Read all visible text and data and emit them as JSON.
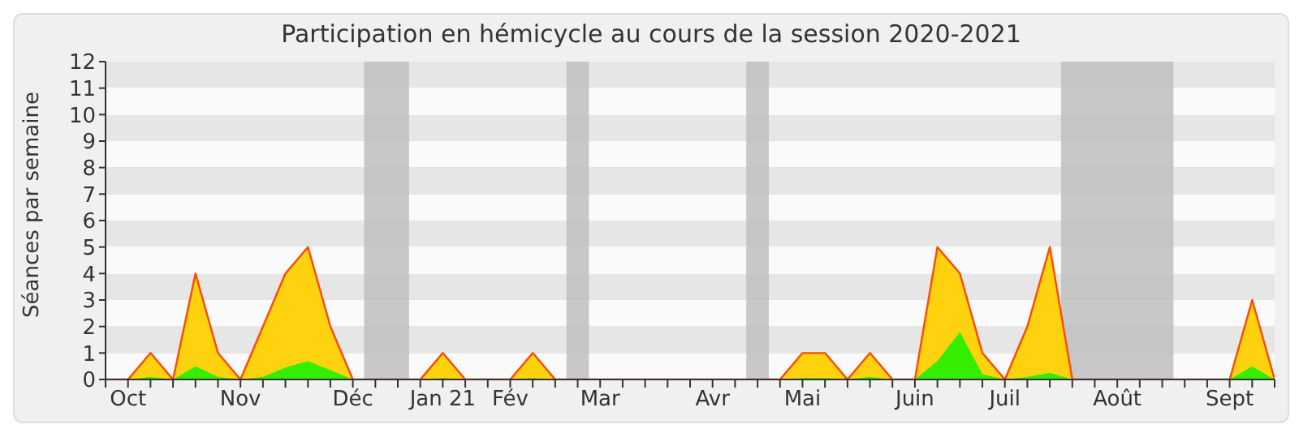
{
  "chart_data": {
    "type": "area",
    "title": "Participation en hémicycle au cours de la session 2020-2021",
    "ylabel": "Séances par semaine",
    "x": [
      "2020-09-28",
      "2020-10-05",
      "2020-10-12",
      "2020-10-19",
      "2020-10-26",
      "2020-11-02",
      "2020-11-09",
      "2020-11-16",
      "2020-11-23",
      "2020-11-30",
      "2020-12-07",
      "2020-12-14",
      "2020-12-21",
      "2020-12-28",
      "2021-01-04",
      "2021-01-11",
      "2021-01-18",
      "2021-01-25",
      "2021-02-01",
      "2021-02-08",
      "2021-02-15",
      "2021-02-22",
      "2021-03-01",
      "2021-03-08",
      "2021-03-15",
      "2021-03-22",
      "2021-03-29",
      "2021-04-05",
      "2021-04-12",
      "2021-04-19",
      "2021-04-26",
      "2021-05-03",
      "2021-05-10",
      "2021-05-17",
      "2021-05-24",
      "2021-05-31",
      "2021-06-07",
      "2021-06-14",
      "2021-06-21",
      "2021-06-28",
      "2021-07-05",
      "2021-07-12",
      "2021-07-19",
      "2021-07-26",
      "2021-08-02",
      "2021-08-09",
      "2021-08-16",
      "2021-08-23",
      "2021-08-30",
      "2021-09-06",
      "2021-09-13",
      "2021-09-20",
      "2021-09-27"
    ],
    "series": [
      {
        "color": "#ffd20f",
        "values": [
          0,
          0,
          1,
          0,
          4,
          1,
          0,
          2,
          4,
          5,
          2,
          0,
          0,
          0,
          0,
          1,
          0,
          0,
          0,
          1,
          0,
          0,
          0,
          0,
          0,
          0,
          0,
          0,
          0,
          0,
          0,
          1,
          1,
          0,
          1,
          0,
          0,
          5,
          4,
          1,
          0,
          2,
          5,
          0,
          0,
          0,
          0,
          0,
          0,
          0,
          0,
          3,
          0
        ]
      },
      {
        "color": "#33ee00",
        "values": [
          0,
          0,
          0.1,
          0,
          0.5,
          0.1,
          0,
          0.1,
          0.45,
          0.7,
          0.35,
          0,
          0,
          0,
          0,
          0.05,
          0,
          0,
          0,
          0.05,
          0,
          0,
          0,
          0,
          0,
          0,
          0,
          0,
          0,
          0,
          0,
          0.05,
          0.05,
          0,
          0.1,
          0,
          0,
          0.7,
          1.8,
          0.2,
          0,
          0.1,
          0.25,
          0,
          0,
          0,
          0,
          0,
          0,
          0,
          0,
          0.5,
          0
        ]
      }
    ],
    "xlim": [
      "2020-09-28",
      "2021-09-27"
    ],
    "xticks": [
      {
        "value": "2020-09-28",
        "label": null
      },
      {
        "value": "2020-10-05",
        "label": "Oct"
      },
      {
        "value": "2020-10-12",
        "label": null
      },
      {
        "value": "2020-10-19",
        "label": null
      },
      {
        "value": "2020-10-26",
        "label": null
      },
      {
        "value": "2020-11-02",
        "label": null
      },
      {
        "value": "2020-11-09",
        "label": "Nov"
      },
      {
        "value": "2020-11-16",
        "label": null
      },
      {
        "value": "2020-11-23",
        "label": null
      },
      {
        "value": "2020-11-30",
        "label": null
      },
      {
        "value": "2020-12-07",
        "label": null
      },
      {
        "value": "2020-12-14",
        "label": "Déc"
      },
      {
        "value": "2020-12-21",
        "label": null
      },
      {
        "value": "2020-12-28",
        "label": null
      },
      {
        "value": "2021-01-04",
        "label": null
      },
      {
        "value": "2021-01-11",
        "label": "Jan 21"
      },
      {
        "value": "2021-01-18",
        "label": null
      },
      {
        "value": "2021-01-25",
        "label": null
      },
      {
        "value": "2021-02-01",
        "label": "Fév"
      },
      {
        "value": "2021-02-08",
        "label": null
      },
      {
        "value": "2021-02-15",
        "label": null
      },
      {
        "value": "2021-02-22",
        "label": null
      },
      {
        "value": "2021-03-01",
        "label": "Mar"
      },
      {
        "value": "2021-03-08",
        "label": null
      },
      {
        "value": "2021-03-15",
        "label": null
      },
      {
        "value": "2021-03-22",
        "label": null
      },
      {
        "value": "2021-03-29",
        "label": null
      },
      {
        "value": "2021-04-05",
        "label": "Avr"
      },
      {
        "value": "2021-04-12",
        "label": null
      },
      {
        "value": "2021-04-19",
        "label": null
      },
      {
        "value": "2021-04-26",
        "label": null
      },
      {
        "value": "2021-05-03",
        "label": "Mai"
      },
      {
        "value": "2021-05-10",
        "label": null
      },
      {
        "value": "2021-05-17",
        "label": null
      },
      {
        "value": "2021-05-24",
        "label": null
      },
      {
        "value": "2021-05-31",
        "label": null
      },
      {
        "value": "2021-06-07",
        "label": "Juin"
      },
      {
        "value": "2021-06-14",
        "label": null
      },
      {
        "value": "2021-06-21",
        "label": null
      },
      {
        "value": "2021-06-28",
        "label": null
      },
      {
        "value": "2021-07-05",
        "label": "Juil"
      },
      {
        "value": "2021-07-12",
        "label": null
      },
      {
        "value": "2021-07-19",
        "label": null
      },
      {
        "value": "2021-07-26",
        "label": null
      },
      {
        "value": "2021-08-02",
        "label": null
      },
      {
        "value": "2021-08-09",
        "label": "Août"
      },
      {
        "value": "2021-08-16",
        "label": null
      },
      {
        "value": "2021-08-23",
        "label": null
      },
      {
        "value": "2021-08-30",
        "label": null
      },
      {
        "value": "2021-09-06",
        "label": null
      },
      {
        "value": "2021-09-13",
        "label": "Sept"
      },
      {
        "value": "2021-09-20",
        "label": null
      },
      {
        "value": "2021-09-27",
        "label": null
      }
    ],
    "ylim": [
      0,
      12
    ],
    "yticks": [
      0,
      1,
      2,
      3,
      4,
      5,
      6,
      7,
      8,
      9,
      10,
      11,
      12
    ],
    "bands": [
      {
        "axis": "x",
        "from": "2020-12-17T12:00",
        "to": "2020-12-31T12:00",
        "color": "#bebebe"
      },
      {
        "axis": "x",
        "from": "2021-02-18T12:00",
        "to": "2021-02-25T12:00",
        "color": "#bebebe"
      },
      {
        "axis": "x",
        "from": "2021-04-15T12:00",
        "to": "2021-04-22T12:00",
        "color": "#bebebe"
      },
      {
        "axis": "x",
        "from": "2021-07-22T12:00",
        "to": "2021-08-26T12:00",
        "color": "#bebebe"
      }
    ]
  }
}
